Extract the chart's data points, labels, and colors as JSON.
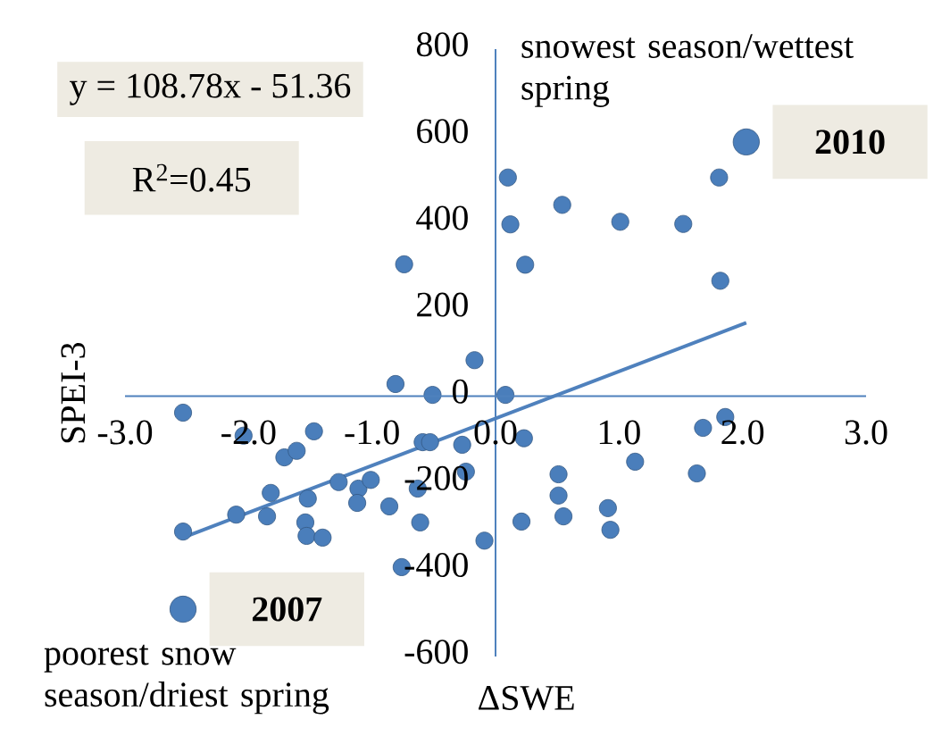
{
  "chart_data": {
    "type": "scatter",
    "xlabel": "ΔSWE",
    "ylabel": "SPEI-3",
    "xlim": [
      -3,
      3
    ],
    "ylim": [
      -600,
      800
    ],
    "xticks": [
      {
        "value": -3,
        "label": "-3.0"
      },
      {
        "value": -2,
        "label": "-2.0"
      },
      {
        "value": -1,
        "label": "-1.0"
      },
      {
        "value": 0,
        "label": "0.0"
      },
      {
        "value": 1,
        "label": "1.0"
      },
      {
        "value": 2,
        "label": "2.0"
      },
      {
        "value": 3,
        "label": "3.0"
      }
    ],
    "yticks": [
      -600,
      -400,
      -200,
      0,
      200,
      400,
      600,
      800
    ],
    "grid": false,
    "series": [
      {
        "type": "scatter",
        "marker": "circle",
        "color": "#4a7ebb",
        "x": [
          -2.53,
          -2.53,
          -2.1,
          -2.04,
          -1.85,
          -1.82,
          -1.71,
          -1.61,
          -1.47,
          -1.52,
          -1.54,
          -1.53,
          -1.4,
          -1.27,
          -1.11,
          -1.12,
          -1.01,
          -0.86,
          -0.61,
          -0.63,
          -0.76,
          -0.81,
          -0.51,
          -0.59,
          -0.53,
          -0.27,
          -0.24,
          -0.17,
          -0.09,
          -0.74,
          0.08,
          0.23,
          0.51,
          0.51,
          0.55,
          0.21,
          0.91,
          0.93,
          1.13,
          1.63,
          1.68,
          1.86,
          0.1,
          0.12,
          0.24,
          0.54,
          1.01,
          1.52,
          1.81,
          1.82
        ],
        "values": [
          -38,
          -312,
          -273,
          -91,
          -277,
          -223,
          -141,
          -126,
          -81,
          -236,
          -291,
          -322,
          -326,
          -198,
          -213,
          -246,
          -193,
          -254,
          -291,
          -213,
          -394,
          28,
          3,
          -106,
          -106,
          -112,
          -174,
          83,
          -333,
          304,
          3,
          -97,
          -180,
          -229,
          -277,
          -289,
          -258,
          -308,
          -151,
          -178,
          -73,
          -48,
          504,
          396,
          303,
          441,
          402,
          397,
          504,
          266
        ]
      },
      {
        "type": "scatter",
        "marker": "circle",
        "color": "#4a7ebb",
        "x": [
          2.03,
          -2.53
        ],
        "values": [
          586,
          -491
        ]
      },
      {
        "type": "line",
        "marker": "none",
        "color": "#4f81bd",
        "x": [
          -2.53,
          2.03
        ],
        "values": [
          -326,
          169
        ]
      }
    ],
    "annotations": [
      {
        "text": "2010",
        "x": 2.03,
        "y": 586
      },
      {
        "text": "2007",
        "x": -2.53,
        "y": -491
      },
      "y = 108.78x - 51.36",
      "R$^{2}$=0.45",
      "snowest season/wettest spring",
      "poorest snow season/driest spring"
    ]
  }
}
